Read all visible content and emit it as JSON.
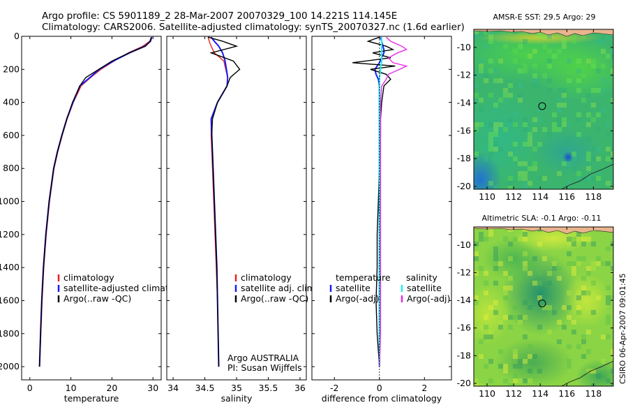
{
  "header": {
    "line1": "Argo profile: CS 5901189_2 28-Mar-2007 20070329_100 14.221S 114.145E",
    "line2": "Climatology: CARS2006. Satellite-adjusted climatology: synTS_20070327.nc (1.6d earlier)"
  },
  "footer": {
    "stamp": "CSIRO 06-Apr-2007 09:01:45"
  },
  "colors": {
    "climatology": "#e8231e",
    "satellite": "#1a1aff",
    "argo": "#000000",
    "cyan": "#1ff0f0",
    "magenta": "#e82be8"
  },
  "chart_data": [
    {
      "id": "temperature",
      "type": "line",
      "xlabel": "temperature",
      "ylabel": "",
      "xlim": [
        -2,
        32
      ],
      "ylim": [
        2080,
        0
      ],
      "xticks": [
        0,
        10,
        20,
        30
      ],
      "yticks": [
        0,
        200,
        400,
        600,
        800,
        1000,
        1200,
        1400,
        1600,
        1800,
        2000
      ],
      "depth": [
        5,
        30,
        60,
        100,
        150,
        200,
        250,
        300,
        400,
        500,
        600,
        700,
        800,
        1000,
        1200,
        1400,
        1600,
        1800,
        2000
      ],
      "series": [
        {
          "name": "climatology",
          "color": "#e8231e",
          "values": [
            29.6,
            29.2,
            27.5,
            24.0,
            20.5,
            17.3,
            14.8,
            12.5,
            10.6,
            9.1,
            7.9,
            6.8,
            5.9,
            4.8,
            4.0,
            3.4,
            3.0,
            2.7,
            2.4
          ]
        },
        {
          "name": "satellite-adjusted climatology",
          "color": "#1a1aff",
          "values": [
            29.7,
            29.4,
            28.0,
            24.3,
            20.3,
            16.9,
            14.6,
            12.2,
            10.5,
            9.0,
            7.8,
            6.7,
            5.8,
            4.7,
            3.9,
            3.3,
            2.9,
            2.6,
            2.35
          ]
        },
        {
          "name": "Argo(..raw -QC)",
          "color": "#000000",
          "values": [
            29.6,
            29.3,
            28.2,
            24.2,
            20.0,
            16.8,
            13.6,
            12.2,
            10.4,
            9.0,
            7.8,
            6.7,
            5.8,
            4.7,
            3.9,
            3.3,
            2.9,
            2.6,
            2.35
          ]
        }
      ],
      "legend": [
        "climatology",
        "satellite-adjusted climatology",
        "Argo(..raw -QC)"
      ],
      "legend_position": "bottom-right"
    },
    {
      "id": "salinity",
      "type": "line",
      "xlabel": "salinity",
      "ylabel": "",
      "xlim": [
        33.9,
        36.1
      ],
      "ylim": [
        2080,
        0
      ],
      "xticks": [
        34,
        34.5,
        35,
        35.5,
        36
      ],
      "yticks": [
        0,
        200,
        400,
        600,
        800,
        1000,
        1200,
        1400,
        1600,
        1800,
        2000
      ],
      "depth": [
        5,
        30,
        60,
        100,
        150,
        200,
        250,
        300,
        400,
        500,
        600,
        800,
        1000,
        1200,
        1400,
        1600,
        1800,
        2000
      ],
      "series": [
        {
          "name": "climatology",
          "color": "#e8231e",
          "values": [
            34.55,
            34.57,
            34.6,
            34.65,
            34.8,
            34.83,
            34.86,
            34.85,
            34.7,
            34.6,
            34.6,
            34.62,
            34.64,
            34.66,
            34.68,
            34.7,
            34.71,
            34.72
          ]
        },
        {
          "name": "satellite adj. clim.",
          "color": "#1a1aff",
          "values": [
            34.6,
            34.65,
            34.72,
            34.78,
            34.82,
            34.84,
            34.86,
            34.85,
            34.7,
            34.6,
            34.61,
            34.63,
            34.65,
            34.67,
            34.69,
            34.7,
            34.71,
            34.72
          ]
        },
        {
          "name": "Argo(..raw -QC)",
          "color": "#000000",
          "values": [
            34.55,
            34.78,
            35.0,
            34.6,
            34.95,
            35.05,
            34.9,
            34.85,
            34.7,
            34.62,
            34.61,
            34.63,
            34.65,
            34.67,
            34.69,
            34.7,
            34.71,
            34.72
          ]
        }
      ],
      "legend": [
        "climatology",
        "satellite adj. clim.",
        "Argo(..raw -QC)"
      ],
      "legend_position": "bottom-right",
      "annotation": [
        "Argo AUSTRALIA",
        "PI: Susan Wijffels"
      ]
    },
    {
      "id": "difference",
      "type": "line",
      "xlabel": "difference from climatology",
      "ylabel": "",
      "xlim": [
        -3,
        3.2
      ],
      "ylim": [
        2080,
        0
      ],
      "xticks": [
        -2,
        0,
        2
      ],
      "yticks": [
        0,
        200,
        400,
        600,
        800,
        1000,
        1200,
        1400,
        1600,
        1800,
        2000
      ],
      "depth": [
        5,
        30,
        60,
        80,
        100,
        130,
        160,
        180,
        200,
        230,
        260,
        300,
        400,
        500,
        600,
        800,
        1000,
        1200,
        1400,
        1600,
        1800,
        2000
      ],
      "series": [
        {
          "name": "temperature satellite",
          "color": "#1a1aff",
          "values": [
            0.05,
            0.1,
            0.15,
            0.2,
            0.2,
            0.1,
            0.0,
            -0.1,
            -0.2,
            -0.15,
            -0.05,
            0,
            0,
            0,
            0,
            0,
            0,
            0,
            0,
            0,
            0,
            0
          ]
        },
        {
          "name": "temperature Argo(-adj)",
          "color": "#000000",
          "values": [
            0,
            -0.5,
            0.3,
            0.6,
            -0.3,
            0.5,
            -1.2,
            0.7,
            -0.4,
            0.3,
            0.5,
            0.2,
            0.1,
            0.05,
            0.05,
            0,
            -0.05,
            -0.1,
            -0.1,
            -0.15,
            -0.1,
            0
          ]
        },
        {
          "name": "salinity satellite",
          "color": "#1ff0f0",
          "values": [
            0.1,
            0.1,
            0.1,
            0.1,
            0.1,
            0.1,
            0.1,
            0.05,
            0.05,
            0.02,
            0,
            0,
            0,
            0,
            0,
            0,
            0,
            0,
            0,
            0,
            0,
            0
          ]
        },
        {
          "name": "salinity Argo(-adj)",
          "color": "#e82be8",
          "values": [
            0.3,
            0.5,
            1.0,
            1.2,
            0.8,
            0.4,
            0.6,
            1.2,
            0.9,
            0.4,
            0.3,
            0.1,
            0.05,
            0.05,
            0.05,
            0.05,
            0.05,
            0.05,
            0.05,
            0.05,
            0.05,
            0
          ]
        }
      ],
      "legend_left_title": "temperature",
      "legend_right_title": "salinity",
      "legend_left": [
        "satellite",
        "Argo(-adj)"
      ],
      "legend_right": [
        "satellite",
        "Argo(-adj)"
      ],
      "legend_position": "bottom"
    },
    {
      "id": "sst_map",
      "type": "heatmap",
      "title": "AMSR-E SST: 29.5 Argo: 29",
      "xlim": [
        109,
        119.5
      ],
      "ylim": [
        -20.2,
        -8.7
      ],
      "xticks": [
        110,
        112,
        114,
        116,
        118
      ],
      "yticks": [
        -10,
        -12,
        -14,
        -16,
        -18,
        -20
      ],
      "float_position": [
        114.145,
        -14.221
      ]
    },
    {
      "id": "sla_map",
      "type": "heatmap",
      "title": "Altimetric SLA: -0.1 Argo: -0.11",
      "xlim": [
        109,
        119.5
      ],
      "ylim": [
        -20.2,
        -8.7
      ],
      "xticks": [
        110,
        112,
        114,
        116,
        118
      ],
      "yticks": [
        -10,
        -12,
        -14,
        -16,
        -18,
        -20
      ],
      "float_position": [
        114.145,
        -14.221
      ]
    }
  ]
}
